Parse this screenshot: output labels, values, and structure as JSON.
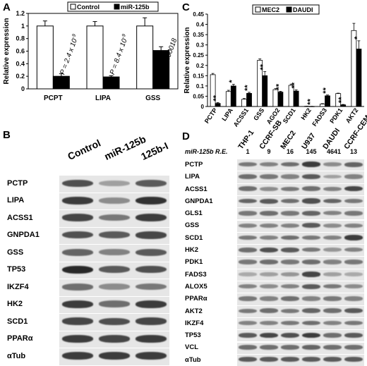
{
  "panel_labels": {
    "a": "A",
    "b": "B",
    "c": "C",
    "d": "D"
  },
  "chart_data": [
    {
      "type": "bar",
      "categories": [
        "PCPT",
        "LIPA",
        "GSS"
      ],
      "series": [
        {
          "name": "Control",
          "values": [
            1.0,
            1.0,
            1.0
          ],
          "errors": [
            0.08,
            0.07,
            0.13
          ],
          "color": "#ffffff"
        },
        {
          "name": "miR-125b",
          "values": [
            0.2,
            0.19,
            0.61
          ],
          "errors": [
            0.04,
            0.02,
            0.06
          ],
          "color": "#000000"
        }
      ],
      "ylabel": "Relative expression",
      "ylim": [
        0,
        1.2
      ],
      "yticks": [
        "0",
        "0.2",
        "0.4",
        "0.6",
        "0.8",
        "1",
        "1.2"
      ],
      "annotations": [
        {
          "category": "PCPT",
          "prefix": "P = 2.4 x 10",
          "exponent": "-9"
        },
        {
          "category": "LIPA",
          "prefix": "P = 8.4 x 10",
          "exponent": "-9"
        },
        {
          "category": "GSS",
          "prefix": "P = 0.00018",
          "exponent": ""
        }
      ],
      "legend_position": "top"
    },
    {
      "type": "bar",
      "categories": [
        "PCTP",
        "LIPA",
        "ACSS1",
        "GSS",
        "AGO2",
        "SCD1",
        "HK2",
        "FADS3",
        "PDK1",
        "AKT2"
      ],
      "series": [
        {
          "name": "MEC2",
          "values": [
            0.155,
            0.073,
            0.035,
            0.225,
            0.082,
            0.103,
            0.001,
            0.012,
            0.063,
            0.37
          ],
          "errors": [
            0.006,
            0.006,
            0.004,
            0.007,
            0.005,
            0.006,
            0.0005,
            0.002,
            0.002,
            0.035
          ],
          "color": "#ffffff"
        },
        {
          "name": "DAUDI",
          "values": [
            0.015,
            0.1,
            0.064,
            0.15,
            0.07,
            0.075,
            0.0005,
            0.052,
            0.008,
            0.28
          ],
          "errors": [
            0.004,
            0.008,
            0.005,
            0.02,
            0.004,
            0.006,
            0.0005,
            0.004,
            0.002,
            0.04
          ],
          "color": "#000000"
        }
      ],
      "significance": [
        "**",
        "*",
        "**",
        "**",
        "**",
        "**",
        "**",
        "**",
        "**",
        "*"
      ],
      "ylabel": "Relative expression",
      "ylim": [
        0,
        0.45
      ],
      "yticks": [
        "0",
        "0.05",
        "0.1",
        "0.15",
        "0.2",
        "0.25",
        "0.3",
        "0.35",
        "0.4",
        "0.45"
      ],
      "legend_position": "top"
    }
  ],
  "blot_b": {
    "lanes": [
      "Control",
      "miR-125b",
      "125b-I"
    ],
    "rows": [
      {
        "label": "PCTP",
        "int": [
          0.75,
          0.35,
          0.7
        ]
      },
      {
        "label": "LIPA",
        "int": [
          0.85,
          0.45,
          0.9
        ]
      },
      {
        "label": "ACSS1",
        "int": [
          0.8,
          0.55,
          0.85
        ]
      },
      {
        "label": "GNPDA1",
        "int": [
          0.75,
          0.7,
          0.8
        ]
      },
      {
        "label": "GSS",
        "int": [
          0.65,
          0.5,
          0.7
        ]
      },
      {
        "label": "TP53",
        "int": [
          0.95,
          0.7,
          0.75
        ]
      },
      {
        "label": "IKZF4",
        "int": [
          0.6,
          0.45,
          0.55
        ]
      },
      {
        "label": "HK2",
        "int": [
          0.85,
          0.6,
          0.85
        ]
      },
      {
        "label": "SCD1",
        "int": [
          0.8,
          0.75,
          0.8
        ]
      },
      {
        "label": "PPARα",
        "int": [
          0.85,
          0.8,
          0.85
        ]
      },
      {
        "label": "αTub",
        "int": [
          0.85,
          0.85,
          0.85
        ]
      }
    ]
  },
  "blot_d": {
    "lanes": [
      "THP-1",
      "CCRF-SB",
      "MEC2",
      "U937",
      "DAUDI",
      "CCRF-CEM"
    ],
    "re_label": "miR-125b R.E.",
    "re_values": [
      "1",
      "9",
      "16",
      "145",
      "4641",
      "13"
    ],
    "rows": [
      {
        "label": "PCTP",
        "int": [
          0.55,
          0.5,
          0.6,
          0.85,
          0.45,
          0.65
        ]
      },
      {
        "label": "LIPA",
        "int": [
          0.6,
          0.55,
          0.5,
          0.7,
          0.35,
          0.5
        ]
      },
      {
        "label": "ACSS1",
        "int": [
          0.6,
          0.45,
          0.55,
          0.6,
          0.5,
          0.8
        ]
      },
      {
        "label": "GNPDA1",
        "int": [
          0.65,
          0.7,
          0.6,
          0.75,
          0.65,
          0.55
        ]
      },
      {
        "label": "GLS1",
        "int": [
          0.55,
          0.6,
          0.55,
          0.65,
          0.5,
          0.55
        ]
      },
      {
        "label": "GSS",
        "int": [
          0.5,
          0.5,
          0.5,
          0.7,
          0.45,
          0.5
        ]
      },
      {
        "label": "SCD1",
        "int": [
          0.55,
          0.5,
          0.6,
          0.55,
          0.5,
          0.85
        ]
      },
      {
        "label": "HK2",
        "int": [
          0.6,
          0.75,
          0.7,
          0.55,
          0.4,
          0.5
        ]
      },
      {
        "label": "PDK1",
        "int": [
          0.55,
          0.6,
          0.55,
          0.6,
          0.5,
          0.55
        ]
      },
      {
        "label": "FADS3",
        "int": [
          0.3,
          0.35,
          0.4,
          0.8,
          0.35,
          0.3
        ]
      },
      {
        "label": "ALOX5",
        "int": [
          0.5,
          0.45,
          0.5,
          0.7,
          0.55,
          0.45
        ]
      },
      {
        "label": "PPARα",
        "int": [
          0.55,
          0.5,
          0.6,
          0.5,
          0.55,
          0.5
        ]
      },
      {
        "label": "AKT2",
        "int": [
          0.55,
          0.6,
          0.55,
          0.65,
          0.6,
          0.7
        ]
      },
      {
        "label": "IKZF4",
        "int": [
          0.5,
          0.5,
          0.55,
          0.6,
          0.5,
          0.55
        ]
      },
      {
        "label": "TP53",
        "int": [
          0.7,
          0.8,
          0.75,
          0.85,
          0.6,
          0.7
        ]
      },
      {
        "label": "VCL",
        "int": [
          0.6,
          0.6,
          0.6,
          0.65,
          0.6,
          0.6
        ]
      },
      {
        "label": "αTub",
        "int": [
          0.7,
          0.7,
          0.7,
          0.7,
          0.7,
          0.7
        ]
      }
    ]
  }
}
